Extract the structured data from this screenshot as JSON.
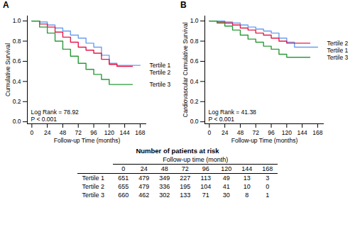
{
  "chart_data": [
    {
      "type": "line",
      "title": "A",
      "x_label": "Follow-up Time (months)",
      "y_label": "Cumulative Survival",
      "line_style": "step",
      "x": [
        0,
        12,
        24,
        36,
        48,
        60,
        72,
        84,
        96,
        108,
        120,
        132,
        144,
        156,
        168
      ],
      "series": [
        {
          "name": "Tertile 1",
          "color": "#6a9ff0",
          "values": [
            1.0,
            0.99,
            0.96,
            0.93,
            0.9,
            0.86,
            0.83,
            0.78,
            0.74,
            0.66,
            0.58,
            0.56,
            0.56,
            0.56,
            0.56
          ]
        },
        {
          "name": "Tertile 2",
          "color": "#e31a4b",
          "values": [
            1.0,
            0.97,
            0.94,
            0.89,
            0.84,
            0.79,
            0.74,
            0.71,
            0.68,
            0.62,
            0.57,
            0.55,
            0.55,
            0.55,
            null
          ]
        },
        {
          "name": "Tertile 3",
          "color": "#2b9a3a",
          "values": [
            1.0,
            0.94,
            0.88,
            0.8,
            0.72,
            0.65,
            0.58,
            0.52,
            0.47,
            0.42,
            0.37,
            0.37,
            0.37,
            0.37,
            null
          ]
        }
      ],
      "xlim": [
        -7,
        178
      ],
      "xticks": [
        0,
        24,
        48,
        72,
        96,
        120,
        144,
        168
      ],
      "ylim": [
        -0.02,
        1.05
      ],
      "yticks": [
        {
          "value": 0,
          "label": "0.0"
        },
        {
          "value": 0.2,
          "label": "0.2"
        },
        {
          "value": 0.4,
          "label": "0.4"
        },
        {
          "value": 0.6,
          "label": "0.6"
        },
        {
          "value": 0.8,
          "label": "0.8"
        },
        {
          "value": 1,
          "label": "1.0"
        }
      ],
      "annotations": [
        "Log Rank = 78.92",
        "P < 0.001"
      ]
    },
    {
      "type": "line",
      "title": "B",
      "x_label": "Follow-up Time (months)",
      "y_label": "Cardiovascular Cumulative Survival",
      "line_style": "step",
      "x": [
        0,
        12,
        24,
        36,
        48,
        60,
        72,
        84,
        96,
        108,
        120,
        132,
        144,
        156,
        168
      ],
      "series": [
        {
          "name": "Tertile 1",
          "color": "#6a9ff0",
          "values": [
            1.0,
            1.0,
            0.99,
            0.98,
            0.96,
            0.94,
            0.92,
            0.9,
            0.88,
            0.83,
            0.79,
            0.74,
            0.74,
            0.74,
            0.74
          ]
        },
        {
          "name": "Tertile 2",
          "color": "#e31a4b",
          "values": [
            1.0,
            0.99,
            0.98,
            0.96,
            0.93,
            0.91,
            0.88,
            0.86,
            0.83,
            0.8,
            0.78,
            0.78,
            0.78,
            0.78,
            null
          ]
        },
        {
          "name": "Tertile 3",
          "color": "#2b9a3a",
          "values": [
            1.0,
            0.98,
            0.95,
            0.91,
            0.86,
            0.82,
            0.79,
            0.75,
            0.72,
            0.67,
            0.64,
            0.64,
            0.64,
            0.64,
            null
          ]
        }
      ],
      "xlim": [
        -7,
        178
      ],
      "xticks": [
        0,
        24,
        48,
        72,
        96,
        120,
        144,
        168
      ],
      "ylim": [
        -0.02,
        1.05
      ],
      "yticks": [
        {
          "value": 0,
          "label": "0.0"
        },
        {
          "value": 0.2,
          "label": "0.2"
        },
        {
          "value": 0.4,
          "label": "0.4"
        },
        {
          "value": 0.6,
          "label": "0.6"
        },
        {
          "value": 0.8,
          "label": "0.8"
        },
        {
          "value": 1,
          "label": "1.0"
        }
      ],
      "annotations": [
        "Log Rank = 41.38",
        "P < 0.001"
      ]
    }
  ],
  "table": {
    "title": "Number of patients at risk",
    "column_title": "Follow-up time (month)",
    "header": [
      0,
      24,
      48,
      72,
      96,
      120,
      144,
      168
    ],
    "rows": [
      [
        "Tertile 1",
        651,
        479,
        349,
        227,
        113,
        49,
        13,
        3
      ],
      [
        "Tertile 2",
        655,
        479,
        336,
        195,
        104,
        41,
        10,
        0
      ],
      [
        "Tertile 3",
        660,
        462,
        302,
        133,
        71,
        30,
        8,
        1
      ]
    ]
  }
}
